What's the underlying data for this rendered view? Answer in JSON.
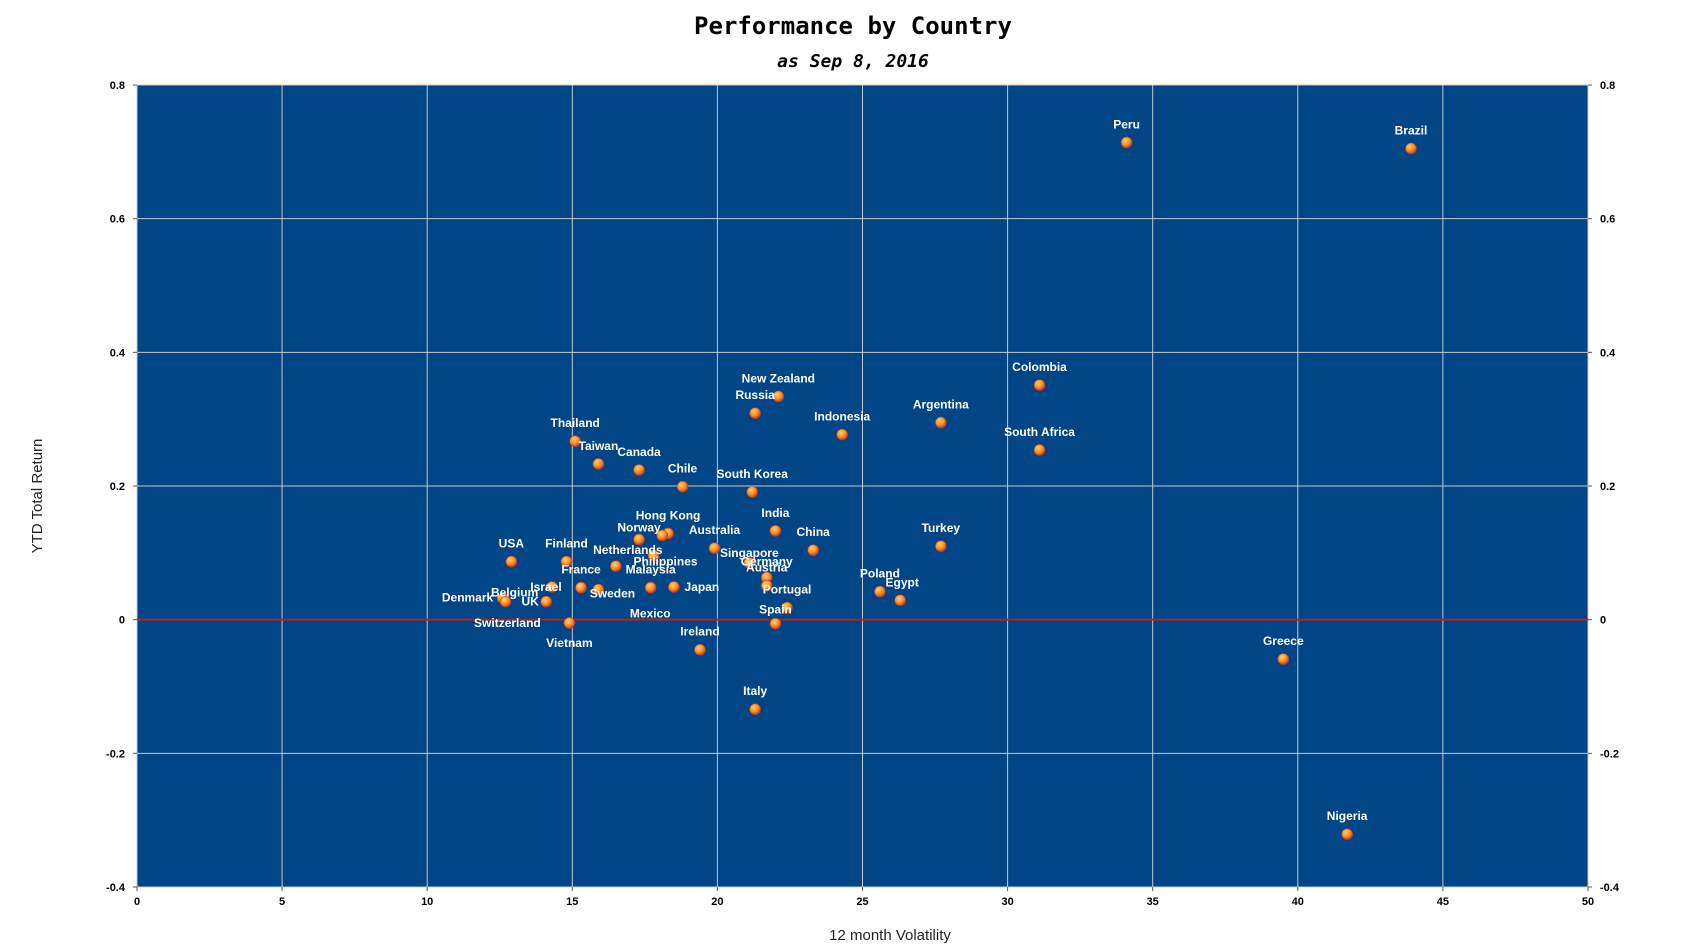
{
  "colors": {
    "plot_background": "#004586",
    "grid": "#c8c8c8",
    "zero_line": "#b22222",
    "point_fill": "#ff8c1a",
    "point_center": "#ffd27a",
    "point_edge": "#c0392b",
    "label_text": "#ffffff"
  },
  "chart_data": {
    "type": "scatter",
    "title": "Performance by Country",
    "subtitle": "as Sep 8, 2016",
    "xlabel": "12 month Volatility",
    "ylabel": "YTD Total Return",
    "xlim": [
      0,
      50
    ],
    "ylim": [
      -0.4,
      0.8
    ],
    "xticks": [
      0,
      5,
      10,
      15,
      20,
      25,
      30,
      35,
      40,
      45,
      50
    ],
    "yticks": [
      -0.4,
      -0.2,
      0,
      0.2,
      0.4,
      0.6,
      0.8
    ],
    "ytick_labels": [
      "-0.4",
      "-0.2",
      "0",
      "0.2",
      "0.4",
      "0.6",
      "0.8"
    ],
    "grid": true,
    "secondary_y_axis": true,
    "reference_line_y": 0,
    "points": [
      {
        "label": "Peru",
        "x": 34.1,
        "y": 0.714
      },
      {
        "label": "Brazil",
        "x": 43.9,
        "y": 0.705
      },
      {
        "label": "Colombia",
        "x": 31.1,
        "y": 0.351
      },
      {
        "label": "New Zealand",
        "x": 22.1,
        "y": 0.334
      },
      {
        "label": "Russia",
        "x": 21.3,
        "y": 0.309
      },
      {
        "label": "Argentina",
        "x": 27.7,
        "y": 0.295
      },
      {
        "label": "Indonesia",
        "x": 24.3,
        "y": 0.277
      },
      {
        "label": "Thailand",
        "x": 15.1,
        "y": 0.267
      },
      {
        "label": "South Africa",
        "x": 31.1,
        "y": 0.254
      },
      {
        "label": "Taiwan",
        "x": 15.9,
        "y": 0.233
      },
      {
        "label": "Canada",
        "x": 17.3,
        "y": 0.224
      },
      {
        "label": "Chile",
        "x": 18.8,
        "y": 0.199
      },
      {
        "label": "South Korea",
        "x": 21.2,
        "y": 0.191
      },
      {
        "label": "India",
        "x": 22.0,
        "y": 0.133
      },
      {
        "label": "Hong Kong",
        "x": 18.3,
        "y": 0.129
      },
      {
        "label": "Norway",
        "x": 17.3,
        "y": 0.12
      },
      {
        "label": "China",
        "x": 23.3,
        "y": 0.104
      },
      {
        "label": "Turkey",
        "x": 27.7,
        "y": 0.11
      },
      {
        "label": "Australia",
        "x": 19.9,
        "y": 0.107
      },
      {
        "label": "Singapore",
        "x": 21.1,
        "y": 0.085
      },
      {
        "label": "Philippines",
        "x": 17.8,
        "y": 0.096
      },
      {
        "label": "Netherlands",
        "x": 16.5,
        "y": 0.08
      },
      {
        "label": "USA",
        "x": 12.9,
        "y": 0.087
      },
      {
        "label": "Finland",
        "x": 14.8,
        "y": 0.087
      },
      {
        "label": "Austria",
        "x": 21.7,
        "y": 0.063
      },
      {
        "label": "Germany",
        "x": 21.7,
        "y": 0.051
      },
      {
        "label": "France",
        "x": 15.3,
        "y": 0.048
      },
      {
        "label": "Malaysia",
        "x": 17.7,
        "y": 0.048
      },
      {
        "label": "Japan",
        "x": 18.5,
        "y": 0.049
      },
      {
        "label": "Poland",
        "x": 25.6,
        "y": 0.042
      },
      {
        "label": "Egypt",
        "x": 26.3,
        "y": 0.029
      },
      {
        "label": "Portugal",
        "x": 22.4,
        "y": 0.018
      },
      {
        "label": "Israel",
        "x": 14.3,
        "y": 0.049
      },
      {
        "label": "Belgium",
        "x": 12.6,
        "y": 0.032
      },
      {
        "label": "Denmark",
        "x": 12.7,
        "y": 0.027
      },
      {
        "label": "UK",
        "x": 14.1,
        "y": 0.027
      },
      {
        "label": "Sweden",
        "x": 15.9,
        "y": 0.045
      },
      {
        "label": "Mexico",
        "x": 18.1,
        "y": 0.126
      },
      {
        "label": "Spain",
        "x": 22.0,
        "y": -0.006
      },
      {
        "label": "Switzerland",
        "x": 14.9,
        "y": -0.005
      },
      {
        "label": "Vietnam",
        "x": 14.9,
        "y": -0.005
      },
      {
        "label": "Ireland",
        "x": 19.4,
        "y": -0.045
      },
      {
        "label": "Greece",
        "x": 39.5,
        "y": -0.059
      },
      {
        "label": "Italy",
        "x": 21.3,
        "y": -0.134
      },
      {
        "label": "Nigeria",
        "x": 41.7,
        "y": -0.321
      }
    ]
  }
}
